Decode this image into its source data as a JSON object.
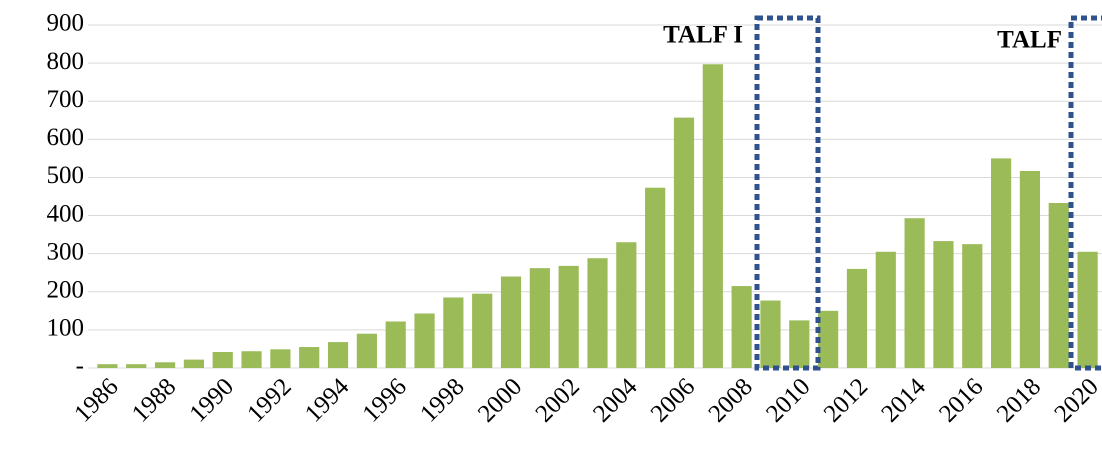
{
  "chart_data": {
    "type": "bar",
    "categories": [
      "1986",
      null,
      "1988",
      null,
      "1990",
      null,
      "1992",
      null,
      "1994",
      null,
      "1996",
      null,
      "1998",
      null,
      "2000",
      null,
      "2002",
      null,
      "2004",
      null,
      "2006",
      null,
      "2008",
      null,
      "2010",
      null,
      "2012",
      null,
      "2014",
      null,
      "2016",
      null,
      "2018",
      null,
      "2020"
    ],
    "values": [
      10,
      10,
      15,
      22,
      42,
      44,
      49,
      55,
      68,
      90,
      122,
      143,
      185,
      195,
      240,
      262,
      268,
      288,
      330,
      473,
      657,
      797,
      215,
      177,
      125,
      150,
      260,
      305,
      393,
      333,
      325,
      550,
      517,
      433,
      305
    ],
    "color": "#9bbb59",
    "ylim": [
      0,
      900
    ],
    "yticks": [
      {
        "value": 0,
        "label": "-"
      },
      100,
      200,
      300,
      400,
      500,
      600,
      700,
      800,
      900
    ],
    "grid": true,
    "annotations": [
      "TALF I",
      "TALF"
    ]
  }
}
